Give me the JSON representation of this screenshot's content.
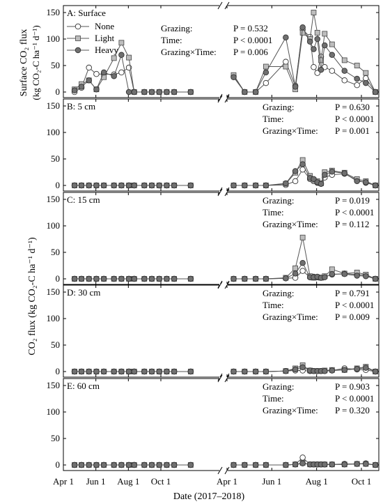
{
  "figure": {
    "xlabel": "Date (2017–2018)",
    "ylabel_top": "Surface CO₂ flux",
    "ylabel_top_units": "(kg CO₂-C ha⁻¹ d⁻¹)",
    "ylabel_main": "CO₂ flux (kg CO₂-C ha⁻¹ d⁻¹)",
    "x_tick_labels": [
      "Apr 1",
      "Jun 1",
      "Aug 1",
      "Oct 1",
      "Apr 1",
      "Jun 1",
      "Aug 1",
      "Oct 1"
    ],
    "stat_labels": [
      "Grazing:",
      "Time:",
      "Grazing×Time:"
    ],
    "legend": [
      {
        "name": "None",
        "marker": "circle",
        "color": "#ffffff"
      },
      {
        "name": "Light",
        "marker": "square",
        "color": "#bdbdbd"
      },
      {
        "name": "Heavy",
        "marker": "circle",
        "color": "#707070"
      }
    ]
  },
  "chart_data": [
    {
      "type": "line",
      "panel": "A: Surface",
      "ylim": [
        0,
        150
      ],
      "yticks": [
        0,
        50,
        100,
        150
      ],
      "stats": {
        "grazing": "P = 0.532",
        "time": "P < 0.0001",
        "interaction": "P = 0.006"
      },
      "x": [
        "2017-04-22",
        "2017-05-05",
        "2017-05-19",
        "2017-06-02",
        "2017-06-16",
        "2017-07-05",
        "2017-07-19",
        "2017-08-02",
        "2017-08-12",
        "2017-08-31",
        "2017-09-14",
        "2017-09-28",
        "2017-10-12",
        "2017-10-26",
        "2017-11-26",
        "2018-04-10",
        "2018-04-25",
        "2018-05-10",
        "2018-05-24",
        "2018-06-20",
        "2018-07-03",
        "2018-07-13",
        "2018-07-23",
        "2018-07-28",
        "2018-08-02",
        "2018-08-07",
        "2018-08-12",
        "2018-08-22",
        "2018-09-08",
        "2018-09-25",
        "2018-10-07",
        "2018-10-20"
      ],
      "series": [
        {
          "name": "None",
          "values": [
            0,
            8,
            46,
            34,
            34,
            33,
            37,
            46,
            0,
            0,
            0,
            0,
            0,
            0,
            0,
            30,
            0,
            0,
            17,
            57,
            12,
            118,
            104,
            47,
            36,
            67,
            47,
            40,
            22,
            13,
            26,
            0
          ]
        },
        {
          "name": "Light",
          "values": [
            5,
            15,
            22,
            5,
            28,
            64,
            93,
            65,
            0,
            0,
            0,
            0,
            0,
            0,
            0,
            32,
            0,
            0,
            48,
            48,
            5,
            112,
            100,
            150,
            112,
            60,
            110,
            90,
            60,
            50,
            36,
            0
          ]
        },
        {
          "name": "Heavy",
          "values": [
            3,
            10,
            22,
            5,
            37,
            30,
            70,
            0,
            0,
            0,
            0,
            0,
            0,
            0,
            0,
            28,
            0,
            0,
            37,
            103,
            10,
            122,
            95,
            81,
            100,
            42,
            88,
            70,
            40,
            25,
            17,
            0
          ]
        }
      ]
    },
    {
      "type": "line",
      "panel": "B: 5 cm",
      "ylim": [
        0,
        150
      ],
      "yticks": [
        0,
        50,
        100,
        150
      ],
      "stats": {
        "grazing": "P = 0.630",
        "time": "P < 0.0001",
        "interaction": "P = 0.001"
      },
      "x": [
        "2017-04-22",
        "2017-05-05",
        "2017-05-19",
        "2017-06-02",
        "2017-06-16",
        "2017-07-05",
        "2017-07-19",
        "2017-08-02",
        "2017-08-12",
        "2017-08-31",
        "2017-09-14",
        "2017-09-28",
        "2017-10-12",
        "2017-10-26",
        "2017-11-26",
        "2018-04-10",
        "2018-04-25",
        "2018-05-10",
        "2018-05-24",
        "2018-06-20",
        "2018-07-03",
        "2018-07-13",
        "2018-07-23",
        "2018-07-28",
        "2018-08-02",
        "2018-08-07",
        "2018-08-12",
        "2018-08-22",
        "2018-09-08",
        "2018-09-25",
        "2018-10-07",
        "2018-10-20"
      ],
      "series": [
        {
          "name": "None",
          "values": [
            0,
            0,
            0,
            0,
            0,
            0,
            0,
            0,
            0,
            0,
            0,
            0,
            0,
            0,
            0,
            0,
            0,
            0,
            0,
            1,
            8,
            30,
            12,
            8,
            5,
            3,
            15,
            20,
            22,
            10,
            5,
            0
          ]
        },
        {
          "name": "Light",
          "values": [
            0,
            0,
            0,
            0,
            0,
            0,
            0,
            0,
            0,
            0,
            0,
            0,
            0,
            0,
            0,
            0,
            0,
            0,
            0,
            3,
            24,
            48,
            18,
            10,
            8,
            4,
            25,
            28,
            24,
            12,
            8,
            0
          ]
        },
        {
          "name": "Heavy",
          "values": [
            0,
            0,
            0,
            0,
            0,
            0,
            0,
            0,
            0,
            0,
            0,
            0,
            0,
            0,
            0,
            0,
            0,
            0,
            0,
            4,
            27,
            40,
            14,
            12,
            6,
            3,
            20,
            26,
            23,
            8,
            6,
            0
          ]
        }
      ]
    },
    {
      "type": "line",
      "panel": "C: 15 cm",
      "ylim": [
        0,
        150
      ],
      "yticks": [
        0,
        50,
        100,
        150
      ],
      "stats": {
        "grazing": "P = 0.019",
        "time": "P < 0.0001",
        "interaction": "P = 0.112"
      },
      "x": [
        "2017-04-22",
        "2017-05-05",
        "2017-05-19",
        "2017-06-02",
        "2017-06-16",
        "2017-07-05",
        "2017-07-19",
        "2017-08-02",
        "2017-08-12",
        "2017-08-31",
        "2017-09-14",
        "2017-09-28",
        "2017-10-12",
        "2017-10-26",
        "2017-11-26",
        "2018-04-10",
        "2018-04-25",
        "2018-05-10",
        "2018-05-24",
        "2018-06-20",
        "2018-07-03",
        "2018-07-13",
        "2018-07-23",
        "2018-07-28",
        "2018-08-02",
        "2018-08-07",
        "2018-08-12",
        "2018-08-22",
        "2018-09-08",
        "2018-09-25",
        "2018-10-07",
        "2018-10-20"
      ],
      "series": [
        {
          "name": "None",
          "values": [
            0,
            0,
            0,
            0,
            0,
            0,
            0,
            0,
            0,
            0,
            0,
            0,
            0,
            0,
            0,
            0,
            0,
            0,
            0,
            1,
            2,
            15,
            3,
            4,
            3,
            2,
            4,
            8,
            10,
            8,
            7,
            0
          ]
        },
        {
          "name": "Light",
          "values": [
            0,
            0,
            0,
            0,
            0,
            0,
            0,
            0,
            0,
            0,
            0,
            0,
            0,
            0,
            0,
            0,
            0,
            0,
            0,
            2,
            20,
            78,
            5,
            2,
            3,
            2,
            5,
            18,
            10,
            12,
            8,
            0
          ]
        },
        {
          "name": "Heavy",
          "values": [
            0,
            0,
            0,
            0,
            0,
            0,
            0,
            0,
            0,
            0,
            0,
            0,
            0,
            0,
            0,
            0,
            0,
            0,
            0,
            1,
            10,
            30,
            3,
            3,
            4,
            2,
            3,
            9,
            9,
            6,
            5,
            0
          ]
        }
      ]
    },
    {
      "type": "line",
      "panel": "D: 30 cm",
      "ylim": [
        0,
        150
      ],
      "yticks": [
        0,
        50,
        100,
        150
      ],
      "stats": {
        "grazing": "P = 0.791",
        "time": "P < 0.0001",
        "interaction": "P = 0.009"
      },
      "x": [
        "2017-04-22",
        "2017-05-05",
        "2017-05-19",
        "2017-06-02",
        "2017-06-16",
        "2017-07-05",
        "2017-07-19",
        "2017-08-02",
        "2017-08-12",
        "2017-08-31",
        "2017-09-14",
        "2017-09-28",
        "2017-10-12",
        "2017-10-26",
        "2017-11-26",
        "2018-04-10",
        "2018-04-25",
        "2018-05-10",
        "2018-05-24",
        "2018-06-20",
        "2018-07-03",
        "2018-07-13",
        "2018-07-23",
        "2018-07-28",
        "2018-08-02",
        "2018-08-07",
        "2018-08-12",
        "2018-08-22",
        "2018-09-08",
        "2018-09-25",
        "2018-10-07",
        "2018-10-20"
      ],
      "series": [
        {
          "name": "None",
          "values": [
            0,
            0,
            0,
            0,
            0,
            0,
            0,
            0,
            0,
            0,
            0,
            0,
            0,
            0,
            0,
            0,
            0,
            0,
            0,
            1,
            2,
            2,
            1,
            1,
            1,
            1,
            1,
            2,
            6,
            4,
            3,
            0
          ]
        },
        {
          "name": "Light",
          "values": [
            0,
            0,
            0,
            0,
            0,
            0,
            0,
            0,
            0,
            0,
            0,
            0,
            0,
            0,
            0,
            0,
            0,
            0,
            0,
            1,
            6,
            12,
            2,
            1,
            1,
            1,
            2,
            3,
            3,
            6,
            9,
            0
          ]
        },
        {
          "name": "Heavy",
          "values": [
            0,
            0,
            0,
            0,
            0,
            0,
            0,
            0,
            0,
            0,
            0,
            0,
            0,
            0,
            0,
            0,
            0,
            0,
            0,
            1,
            4,
            8,
            2,
            1,
            1,
            1,
            1,
            2,
            3,
            5,
            7,
            0
          ]
        }
      ]
    },
    {
      "type": "line",
      "panel": "E: 60 cm",
      "ylim": [
        0,
        150
      ],
      "yticks": [
        0,
        50,
        100,
        150
      ],
      "stats": {
        "grazing": "P = 0.903",
        "time": "P < 0.0001",
        "interaction": "P = 0.320"
      },
      "x": [
        "2017-04-22",
        "2017-05-05",
        "2017-05-19",
        "2017-06-02",
        "2017-06-16",
        "2017-07-05",
        "2017-07-19",
        "2017-08-02",
        "2017-08-12",
        "2017-08-31",
        "2017-09-14",
        "2017-09-28",
        "2017-10-12",
        "2017-10-26",
        "2017-11-26",
        "2018-04-10",
        "2018-04-25",
        "2018-05-10",
        "2018-05-24",
        "2018-06-20",
        "2018-07-03",
        "2018-07-13",
        "2018-07-23",
        "2018-07-28",
        "2018-08-02",
        "2018-08-07",
        "2018-08-12",
        "2018-08-22",
        "2018-09-08",
        "2018-09-25",
        "2018-10-07",
        "2018-10-20"
      ],
      "series": [
        {
          "name": "None",
          "values": [
            0,
            0,
            0,
            0,
            0,
            0,
            0,
            0,
            0,
            0,
            0,
            0,
            0,
            0,
            0,
            0,
            0,
            0,
            0,
            0,
            1,
            14,
            1,
            1,
            1,
            1,
            1,
            1,
            2,
            2,
            3,
            0
          ]
        },
        {
          "name": "Light",
          "values": [
            0,
            0,
            0,
            0,
            0,
            0,
            0,
            0,
            0,
            0,
            0,
            0,
            0,
            0,
            0,
            0,
            0,
            0,
            0,
            0,
            1,
            4,
            1,
            1,
            1,
            1,
            1,
            1,
            1,
            2,
            2,
            0
          ]
        },
        {
          "name": "Heavy",
          "values": [
            0,
            0,
            0,
            0,
            0,
            0,
            0,
            0,
            0,
            0,
            0,
            0,
            0,
            0,
            0,
            0,
            0,
            0,
            0,
            0,
            1,
            3,
            1,
            1,
            1,
            1,
            1,
            1,
            1,
            2,
            2,
            0
          ]
        }
      ]
    }
  ]
}
